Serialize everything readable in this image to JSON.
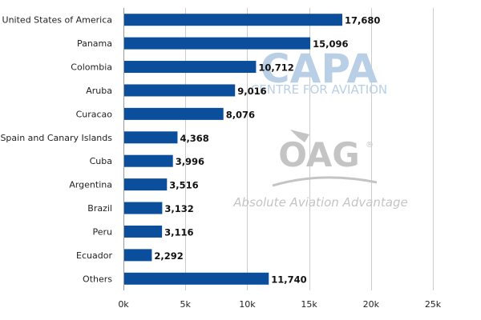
{
  "watermarks": {
    "capa_logo": "CAPA",
    "capa_sub": "CENTRE FOR AVIATION",
    "oag_logo": "OAG",
    "oag_reg": "®",
    "oag_tagline": "Absolute Aviation Advantage"
  },
  "colors": {
    "bar": "#0b4f9c",
    "grid": "#cccccc",
    "watermark": "#b9cfe6",
    "watermark_grey": "#c4c4c4"
  },
  "chart_data": {
    "type": "bar",
    "orientation": "horizontal",
    "categories": [
      "United States of America",
      "Panama",
      "Colombia",
      "Aruba",
      "Curacao",
      "Spain and Canary Islands",
      "Cuba",
      "Argentina",
      "Brazil",
      "Peru",
      "Ecuador",
      "Others"
    ],
    "values": [
      17680,
      15096,
      10712,
      9016,
      8076,
      4368,
      3996,
      3516,
      3132,
      3116,
      2292,
      11740
    ],
    "value_labels": [
      "17,680",
      "15,096",
      "10,712",
      "9,016",
      "8,076",
      "4,368",
      "3,996",
      "3,516",
      "3,132",
      "3,116",
      "2,292",
      "11,740"
    ],
    "xlim": [
      0,
      25000
    ],
    "xticks": [
      0,
      5000,
      10000,
      15000,
      20000,
      25000
    ],
    "xtick_labels": [
      "0k",
      "5k",
      "10k",
      "15k",
      "20k",
      "25k"
    ],
    "grid": true,
    "title": "",
    "xlabel": "",
    "ylabel": ""
  }
}
